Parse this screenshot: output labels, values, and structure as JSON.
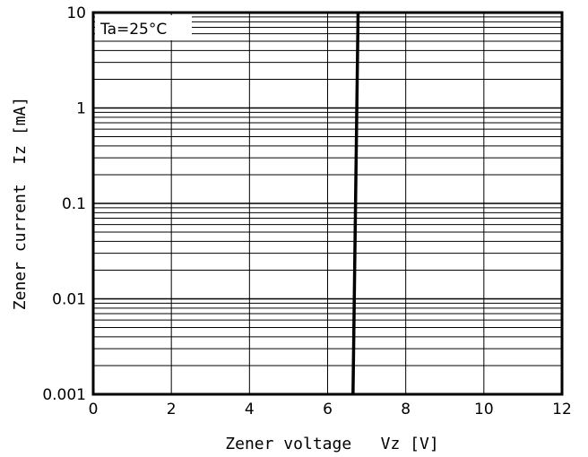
{
  "chart_data": {
    "type": "line",
    "title": "",
    "annotation": "Ta=25°C",
    "xlabel": "Zener voltage   Vz [V]",
    "ylabel": "Zener current  Iz [mA]",
    "xlim": [
      0,
      12
    ],
    "ylim": [
      0.001,
      10
    ],
    "yscale": "log",
    "grid": true,
    "x_ticks": [
      0,
      2,
      4,
      6,
      8,
      10,
      12
    ],
    "x_tick_labels": [
      "0",
      "2",
      "4",
      "6",
      "8",
      "10",
      "12"
    ],
    "y_ticks": [
      0.001,
      0.01,
      0.1,
      1,
      10
    ],
    "y_tick_labels": [
      "0.001",
      "0.01",
      "0.1",
      "1",
      "10"
    ],
    "series": [
      {
        "x": [
          6.65,
          6.78
        ],
        "y": [
          0.001,
          10
        ]
      }
    ],
    "colors": {
      "line": "#000000",
      "grid": "#000000",
      "background": "#ffffff"
    }
  }
}
